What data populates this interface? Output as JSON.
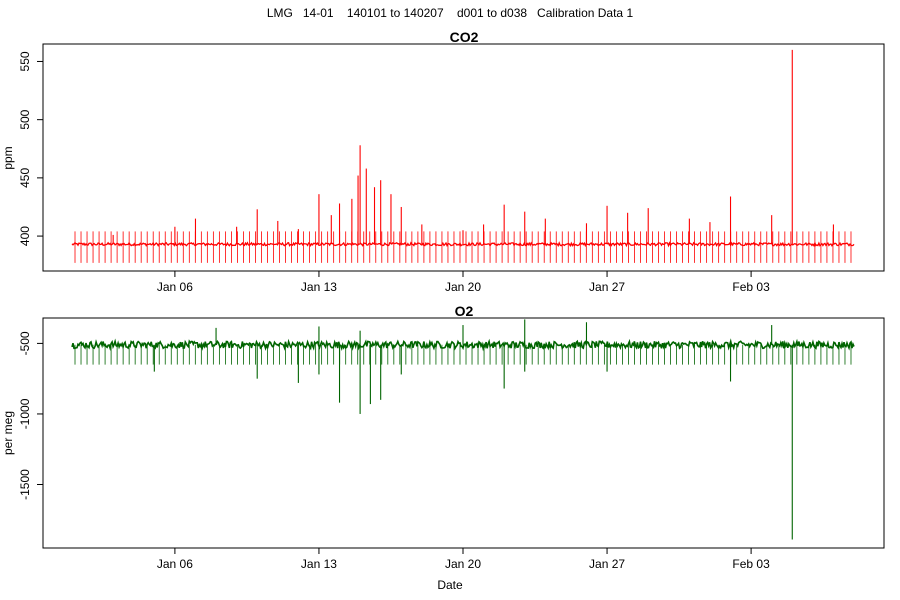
{
  "figure": {
    "suptitle": "LMG   14-01    140101 to 140207    d001 to d038   Calibration Data 1"
  },
  "chart_data": [
    {
      "type": "line",
      "title": "CO2",
      "xlabel": "",
      "ylabel": "ppm",
      "x_axis": {
        "type": "date",
        "start": "2014-01-01",
        "end": "2014-02-08",
        "tick_dates": [
          "2014-01-06",
          "2014-01-13",
          "2014-01-20",
          "2014-01-27",
          "2014-02-03"
        ],
        "tick_labels": [
          "Jan 06",
          "Jan 13",
          "Jan 20",
          "Jan 27",
          "Feb 03"
        ]
      },
      "ylim": [
        370,
        565
      ],
      "yticks": [
        400,
        450,
        500,
        550
      ],
      "ytick_labels": [
        "400",
        "450",
        "500",
        "550"
      ],
      "grid": false,
      "series": [
        {
          "color": "#ff0000",
          "baseline": 393,
          "calibration_spikes": {
            "count": 130,
            "high": 404,
            "low": 377
          },
          "peaks": [
            [
              "2014-01-03",
              401
            ],
            [
              "2014-01-06",
              408
            ],
            [
              "2014-01-07",
              415
            ],
            [
              "2014-01-09",
              408
            ],
            [
              "2014-01-10",
              423
            ],
            [
              "2014-01-11",
              413
            ],
            [
              "2014-01-12",
              406
            ],
            [
              "2014-01-13",
              436
            ],
            [
              "2014-01-13.6",
              418
            ],
            [
              "2014-01-14",
              428
            ],
            [
              "2014-01-14.6",
              432
            ],
            [
              "2014-01-14.9",
              452
            ],
            [
              "2014-01-15",
              478
            ],
            [
              "2014-01-15.3",
              458
            ],
            [
              "2014-01-15.7",
              442
            ],
            [
              "2014-01-16",
              448
            ],
            [
              "2014-01-16.5",
              436
            ],
            [
              "2014-01-17",
              425
            ],
            [
              "2014-01-18",
              410
            ],
            [
              "2014-01-20",
              405
            ],
            [
              "2014-01-21",
              410
            ],
            [
              "2014-01-22",
              427
            ],
            [
              "2014-01-23",
              421
            ],
            [
              "2014-01-24",
              415
            ],
            [
              "2014-01-26",
              411
            ],
            [
              "2014-01-27",
              426
            ],
            [
              "2014-01-28",
              420
            ],
            [
              "2014-01-29",
              424
            ],
            [
              "2014-01-31",
              415
            ],
            [
              "2014-02-01",
              412
            ],
            [
              "2014-02-02",
              434
            ],
            [
              "2014-02-04",
              418
            ],
            [
              "2014-02-05",
              560
            ],
            [
              "2014-02-07",
              410
            ]
          ]
        }
      ]
    },
    {
      "type": "line",
      "title": "O2",
      "xlabel": "Date",
      "ylabel": "per meg",
      "x_axis": {
        "type": "date",
        "start": "2014-01-01",
        "end": "2014-02-08",
        "tick_dates": [
          "2014-01-06",
          "2014-01-13",
          "2014-01-20",
          "2014-01-27",
          "2014-02-03"
        ],
        "tick_labels": [
          "Jan 06",
          "Jan 13",
          "Jan 20",
          "Jan 27",
          "Feb 03"
        ]
      },
      "ylim": [
        -1950,
        -320
      ],
      "yticks": [
        -1500,
        -1000,
        -500
      ],
      "ytick_labels": [
        "-1500",
        "-1000",
        "-500"
      ],
      "grid": false,
      "series": [
        {
          "color": "#006400",
          "baseline": -510,
          "noise_band": [
            -560,
            -460
          ],
          "calibration_spikes": {
            "count": 130,
            "low": -650
          },
          "dips": [
            [
              "2014-01-05",
              -700
            ],
            [
              "2014-01-10",
              -750
            ],
            [
              "2014-01-12",
              -780
            ],
            [
              "2014-01-13",
              -720
            ],
            [
              "2014-01-14",
              -920
            ],
            [
              "2014-01-15",
              -1000
            ],
            [
              "2014-01-15.5",
              -930
            ],
            [
              "2014-01-16",
              -900
            ],
            [
              "2014-01-17",
              -720
            ],
            [
              "2014-01-22",
              -820
            ],
            [
              "2014-01-23",
              -700
            ],
            [
              "2014-01-27",
              -700
            ],
            [
              "2014-02-02",
              -770
            ],
            [
              "2014-02-05",
              -1890
            ]
          ],
          "highs": [
            [
              "2014-01-08",
              -390
            ],
            [
              "2014-01-13",
              -380
            ],
            [
              "2014-01-15",
              -410
            ],
            [
              "2014-01-20",
              -370
            ],
            [
              "2014-01-23",
              -330
            ],
            [
              "2014-01-26",
              -350
            ],
            [
              "2014-02-04",
              -370
            ]
          ]
        }
      ]
    }
  ]
}
